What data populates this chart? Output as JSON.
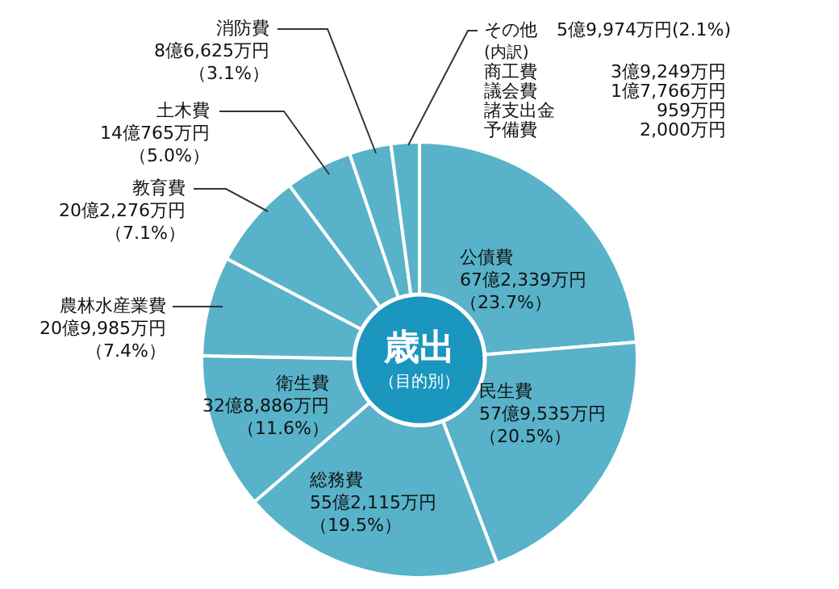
{
  "chart_data": {
    "type": "donut",
    "title": "歳出",
    "subtitle": "（目的別）",
    "categories": [
      "公債費",
      "民生費",
      "総務費",
      "衛生費",
      "農林水産業費",
      "教育費",
      "土木費",
      "消防費",
      "その他"
    ],
    "values": [
      23.7,
      20.5,
      19.5,
      11.6,
      7.4,
      7.1,
      5.0,
      3.1,
      2.1
    ],
    "value_labels": [
      "67億2,339万円（23.7%）",
      "57億9,535万円（20.5%）",
      "55億2,115万円（19.5%）",
      "32億8,886万円（11.6%）",
      "20億9,985万円（7.4%）",
      "20億2,276万円（7.1%）",
      "14億765万円（5.0%）",
      "8億6,625万円（3.1%）",
      "5億9,974万円(2.1%)"
    ],
    "colors": [
      "#58b2ca",
      "#58b2ca",
      "#58b2ca",
      "#58b2ca",
      "#58b2ca",
      "#58b2ca",
      "#58b2ca",
      "#58b2ca",
      "#58b2ca"
    ],
    "annotations": [
      "(内訳)",
      "商工費\t3億9,249万円",
      "議会費\t1億7,766万円",
      "諸支出金\t959万円",
      "予備費\t2,000万円"
    ],
    "legend": false
  }
}
